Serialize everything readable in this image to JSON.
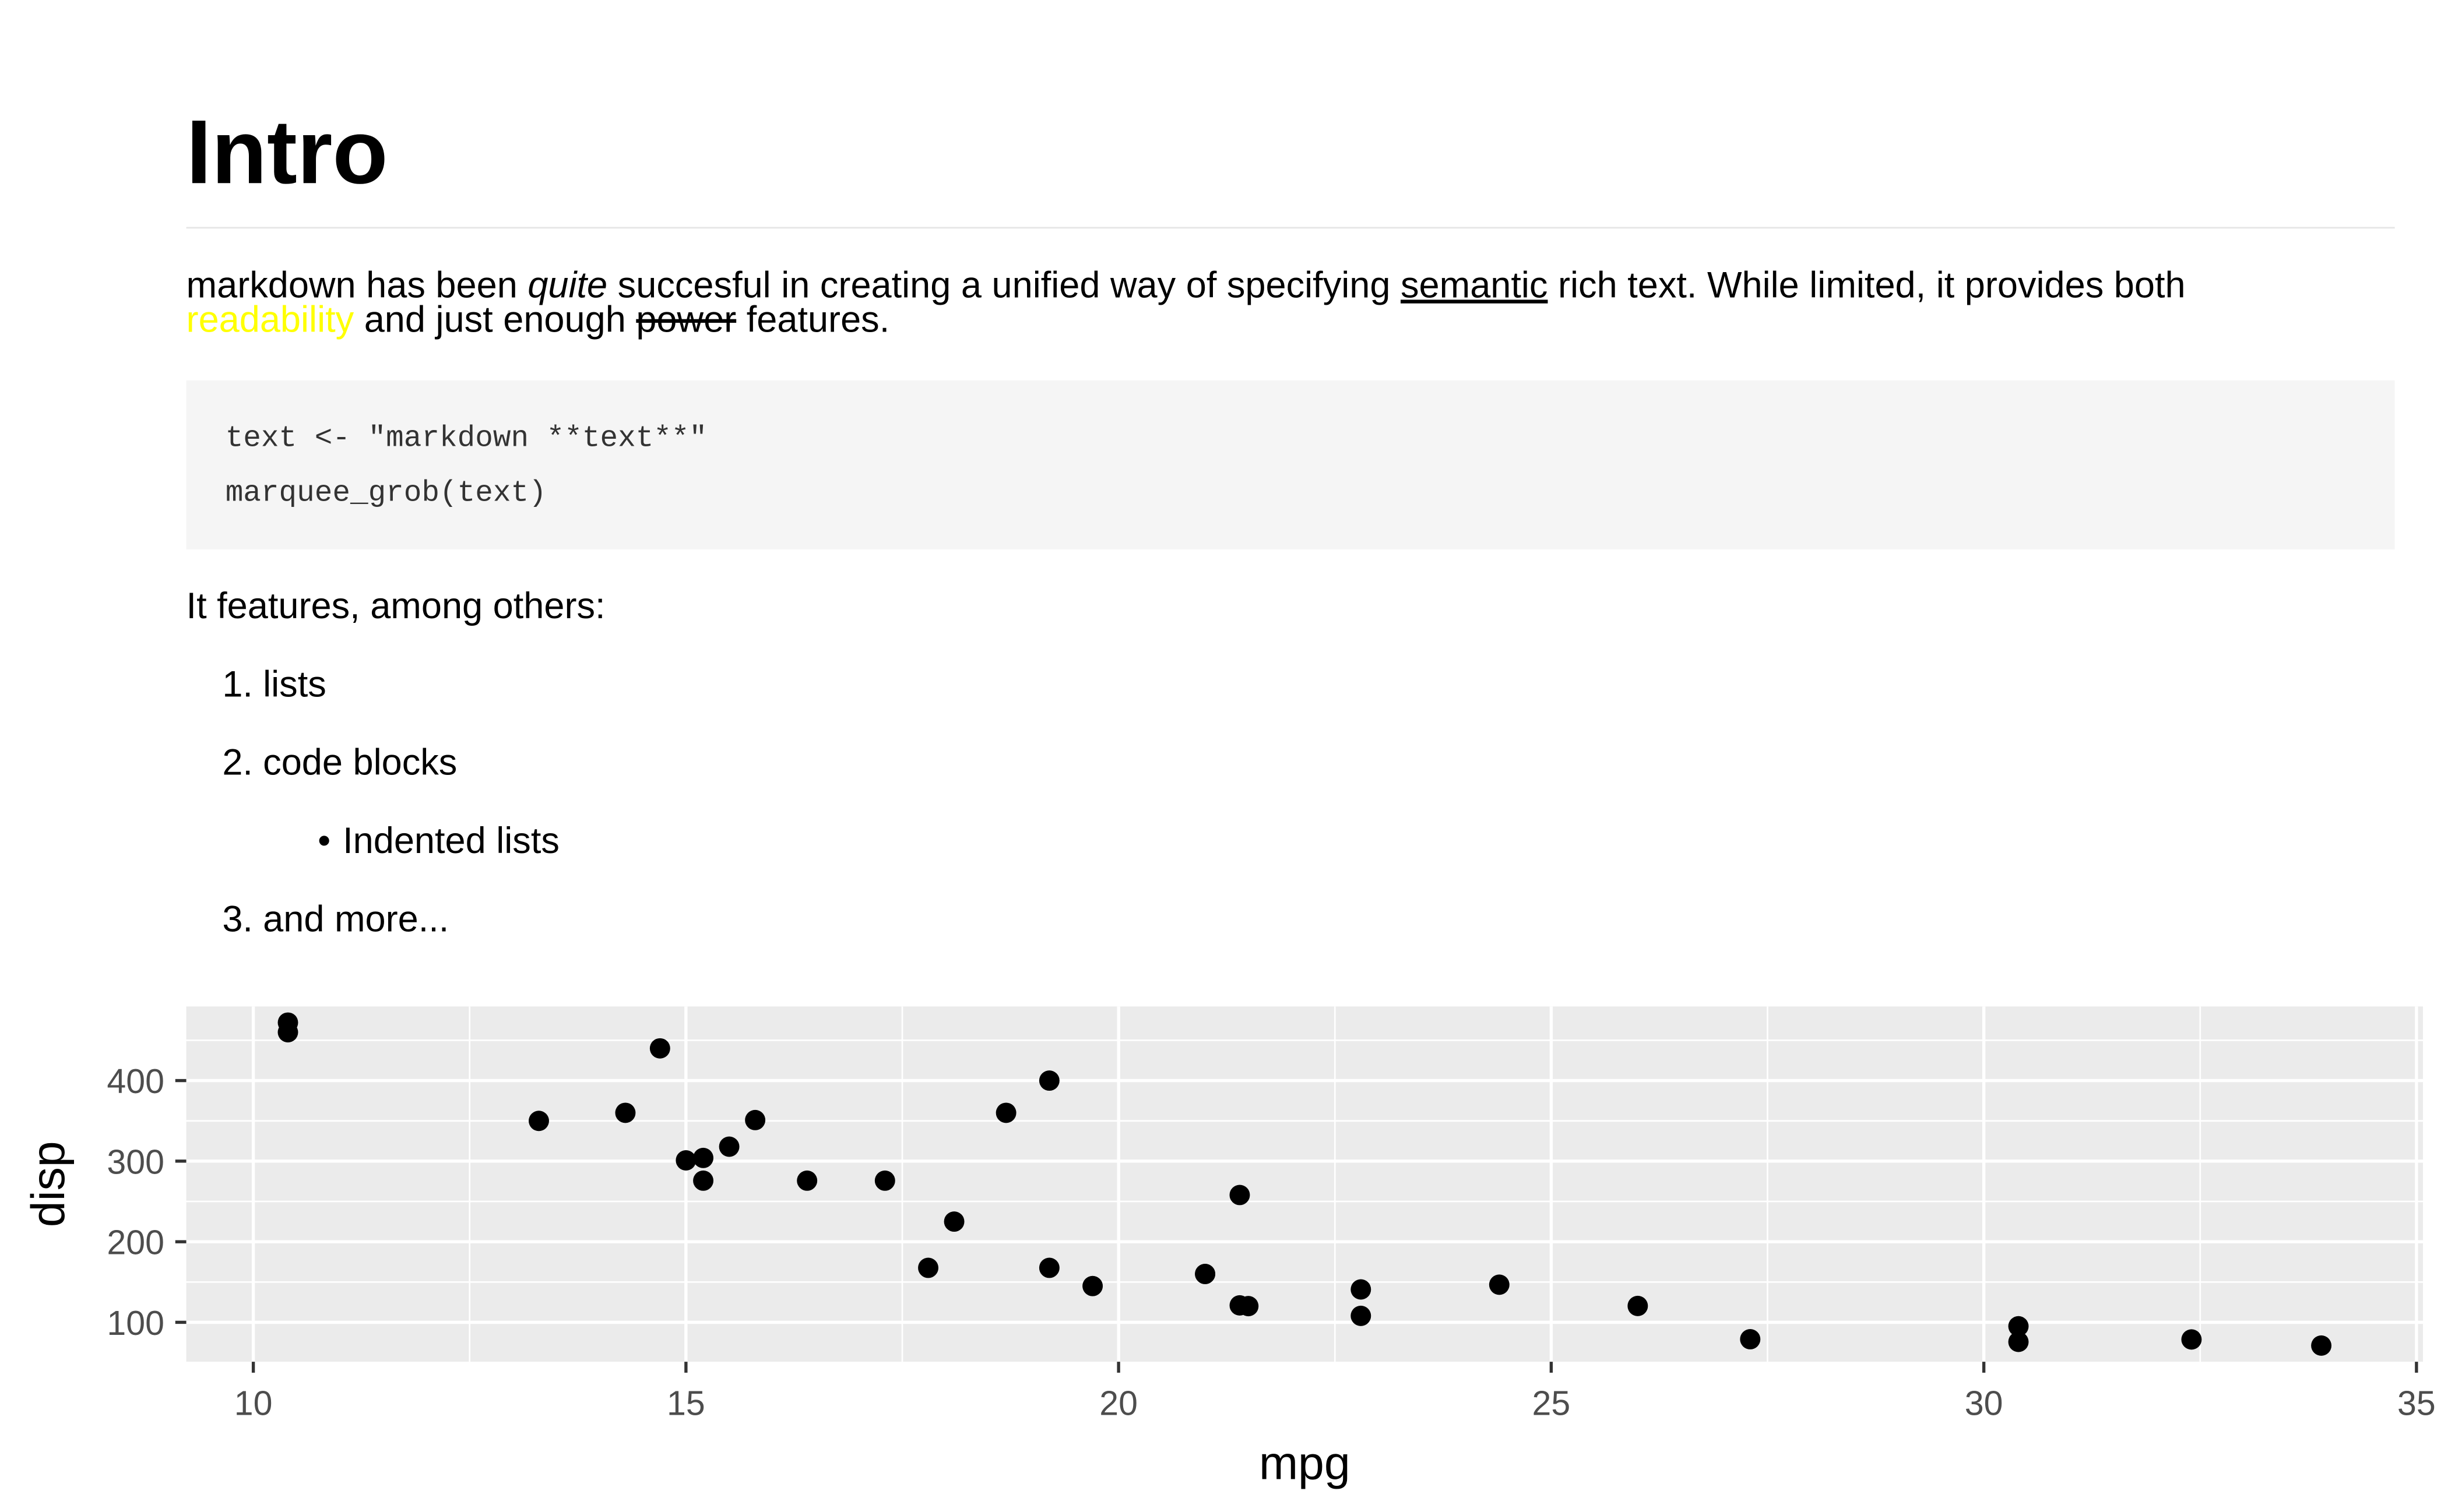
{
  "document": {
    "title": "Intro",
    "paragraph": [
      "markdown has been ",
      "quite",
      " succesful in creating a unified way of specifying ",
      "semantic",
      " rich text. While limited, it provides both",
      "readability",
      " and just enough ",
      "power",
      " features."
    ],
    "code": [
      "text <- \"markdown **text**\"",
      "marquee_grob(text)"
    ],
    "lead": "It features, among others:",
    "list": [
      {
        "marker": "1.",
        "text": "lists"
      },
      {
        "marker": "2.",
        "text": "code blocks",
        "sublist": [
          {
            "marker": "•",
            "text": "Indented lists"
          }
        ]
      },
      {
        "marker": "3.",
        "text": "and more..."
      }
    ]
  },
  "chart_data": {
    "type": "scatter",
    "xlabel": "mpg",
    "ylabel": "disp",
    "color": "#000000",
    "grid": true,
    "x": [
      21,
      21,
      22.8,
      21.4,
      18.7,
      18.1,
      14.3,
      24.4,
      22.8,
      19.2,
      17.8,
      16.4,
      17.3,
      15.2,
      10.4,
      10.4,
      14.7,
      32.4,
      30.4,
      33.9,
      21.5,
      15.5,
      15.2,
      13.3,
      19.2,
      27.3,
      26,
      30.4,
      15.8,
      19.7,
      15,
      21.4
    ],
    "values": [
      160,
      160,
      108,
      258,
      360,
      225,
      360,
      146.7,
      140.8,
      167.6,
      167.6,
      275.8,
      275.8,
      275.8,
      472,
      460,
      440,
      78.7,
      75.7,
      71.1,
      120.1,
      318,
      304,
      350,
      400,
      79,
      120.3,
      95.1,
      351,
      145,
      301,
      121
    ],
    "xlim": [
      9.225,
      35.075
    ],
    "ylim": [
      51.055,
      492.045
    ],
    "xticks": [
      10,
      15,
      20,
      25,
      30,
      35
    ],
    "yticks": [
      100,
      200,
      300,
      400
    ],
    "xminor": [
      12.5,
      17.5,
      22.5,
      27.5,
      32.5
    ],
    "yminor": [
      150,
      250,
      350,
      450
    ]
  }
}
